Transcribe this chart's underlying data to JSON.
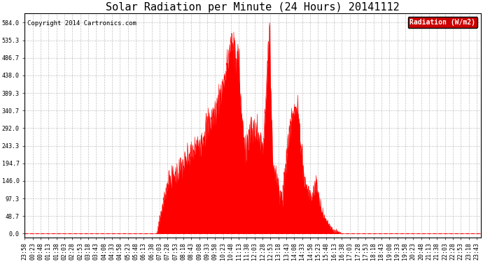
{
  "title": "Solar Radiation per Minute (24 Hours) 20141112",
  "copyright_text": "Copyright 2014 Cartronics.com",
  "legend_label": "Radiation (W/m2)",
  "legend_bg": "#cc0000",
  "legend_text_color": "#ffffff",
  "fill_color": "#ff0000",
  "line_color": "#ff0000",
  "zero_line_color": "#ff0000",
  "background_color": "#ffffff",
  "grid_color": "#999999",
  "ytick_labels": [
    "584.0",
    "535.3",
    "486.7",
    "438.0",
    "389.3",
    "340.7",
    "292.0",
    "243.3",
    "194.7",
    "146.0",
    "97.3",
    "48.7",
    "0.0"
  ],
  "ytick_values": [
    584.0,
    535.3,
    486.7,
    438.0,
    389.3,
    340.7,
    292.0,
    243.3,
    194.7,
    146.0,
    97.3,
    48.7,
    0.0
  ],
  "ymax": 610,
  "ymin": -10,
  "title_fontsize": 11,
  "tick_fontsize": 6,
  "copyright_fontsize": 6.5,
  "legend_fontsize": 7,
  "figwidth": 6.9,
  "figheight": 3.75,
  "dpi": 100
}
